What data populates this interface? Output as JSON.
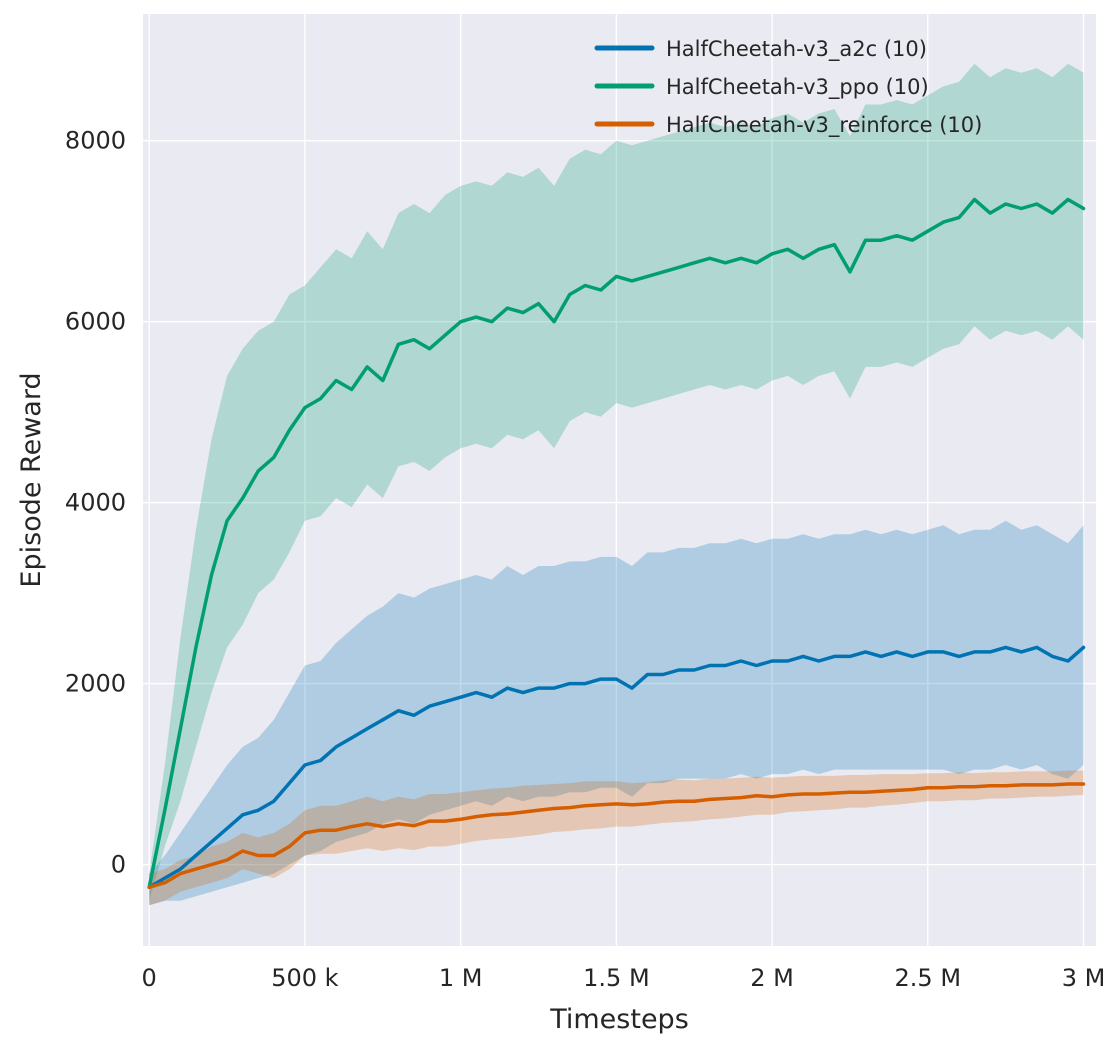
{
  "chart_data": {
    "type": "line",
    "title": "",
    "xlabel": "Timesteps",
    "ylabel": "Episode Reward",
    "xlim": [
      -20000,
      3040000
    ],
    "ylim": [
      -900,
      9400
    ],
    "grid": true,
    "legend_position": "upper center-right",
    "background": "#eaeaf2",
    "figure_background": "#ffffff",
    "grid_color": "#ffffff",
    "text_color": "#262626",
    "x_ticks": [
      {
        "value": 0,
        "label": "0"
      },
      {
        "value": 500000,
        "label": "500 k"
      },
      {
        "value": 1000000,
        "label": "1 M"
      },
      {
        "value": 1500000,
        "label": "1.5 M"
      },
      {
        "value": 2000000,
        "label": "2 M"
      },
      {
        "value": 2500000,
        "label": "2.5 M"
      },
      {
        "value": 3000000,
        "label": "3 M"
      }
    ],
    "y_ticks": [
      {
        "value": 0,
        "label": "0"
      },
      {
        "value": 2000,
        "label": "2000"
      },
      {
        "value": 4000,
        "label": "4000"
      },
      {
        "value": 6000,
        "label": "6000"
      },
      {
        "value": 8000,
        "label": "8000"
      }
    ],
    "x": [
      0,
      50000,
      100000,
      150000,
      200000,
      250000,
      300000,
      350000,
      400000,
      450000,
      500000,
      550000,
      600000,
      650000,
      700000,
      750000,
      800000,
      850000,
      900000,
      950000,
      1000000,
      1050000,
      1100000,
      1150000,
      1200000,
      1250000,
      1300000,
      1350000,
      1400000,
      1450000,
      1500000,
      1550000,
      1600000,
      1650000,
      1700000,
      1750000,
      1800000,
      1850000,
      1900000,
      1950000,
      2000000,
      2050000,
      2100000,
      2150000,
      2200000,
      2250000,
      2300000,
      2350000,
      2400000,
      2450000,
      2500000,
      2550000,
      2600000,
      2650000,
      2700000,
      2750000,
      2800000,
      2850000,
      2900000,
      2950000,
      3000000
    ],
    "series": [
      {
        "name": "HalfCheetah-v3_a2c (10)",
        "color": "#0173b2",
        "band_opacity": 0.25,
        "mean": [
          -250,
          -150,
          -50,
          100,
          250,
          400,
          550,
          600,
          700,
          900,
          1100,
          1150,
          1300,
          1400,
          1500,
          1600,
          1700,
          1650,
          1750,
          1800,
          1850,
          1900,
          1850,
          1950,
          1900,
          1950,
          1950,
          2000,
          2000,
          2050,
          2050,
          1950,
          2100,
          2100,
          2150,
          2150,
          2200,
          2200,
          2250,
          2200,
          2250,
          2250,
          2300,
          2250,
          2300,
          2300,
          2350,
          2300,
          2350,
          2300,
          2350,
          2350,
          2300,
          2350,
          2350,
          2400,
          2350,
          2400,
          2300,
          2250,
          2400
        ],
        "upper": [
          -100,
          100,
          350,
          600,
          850,
          1100,
          1300,
          1400,
          1600,
          1900,
          2200,
          2250,
          2450,
          2600,
          2750,
          2850,
          3000,
          2950,
          3050,
          3100,
          3150,
          3200,
          3150,
          3300,
          3200,
          3300,
          3300,
          3350,
          3350,
          3400,
          3400,
          3300,
          3450,
          3450,
          3500,
          3500,
          3550,
          3550,
          3600,
          3550,
          3600,
          3600,
          3650,
          3600,
          3650,
          3650,
          3700,
          3650,
          3700,
          3650,
          3700,
          3750,
          3650,
          3700,
          3700,
          3800,
          3700,
          3750,
          3650,
          3550,
          3750
        ],
        "lower": [
          -450,
          -400,
          -400,
          -350,
          -300,
          -250,
          -200,
          -150,
          -100,
          0,
          100,
          150,
          250,
          300,
          350,
          450,
          500,
          450,
          550,
          600,
          650,
          700,
          650,
          750,
          700,
          750,
          750,
          800,
          800,
          850,
          850,
          750,
          900,
          900,
          950,
          950,
          950,
          950,
          1000,
          950,
          1000,
          1000,
          1050,
          1000,
          1050,
          1050,
          1050,
          1050,
          1050,
          1050,
          1050,
          1050,
          1000,
          1050,
          1050,
          1100,
          1050,
          1100,
          1000,
          950,
          1100
        ]
      },
      {
        "name": "HalfCheetah-v3_ppo (10)",
        "color": "#029e73",
        "band_opacity": 0.25,
        "mean": [
          -250,
          600,
          1500,
          2400,
          3200,
          3800,
          4050,
          4350,
          4500,
          4800,
          5050,
          5150,
          5350,
          5250,
          5500,
          5350,
          5750,
          5800,
          5700,
          5850,
          6000,
          6050,
          6000,
          6150,
          6100,
          6200,
          6000,
          6300,
          6400,
          6350,
          6500,
          6450,
          6500,
          6550,
          6600,
          6650,
          6700,
          6650,
          6700,
          6650,
          6750,
          6800,
          6700,
          6800,
          6850,
          6550,
          6900,
          6900,
          6950,
          6900,
          7000,
          7100,
          7150,
          7350,
          7200,
          7300,
          7250,
          7300,
          7200,
          7350,
          7250
        ],
        "upper": [
          -100,
          1100,
          2500,
          3700,
          4700,
          5400,
          5700,
          5900,
          6000,
          6300,
          6400,
          6600,
          6800,
          6700,
          7000,
          6800,
          7200,
          7300,
          7200,
          7400,
          7500,
          7550,
          7500,
          7650,
          7600,
          7700,
          7500,
          7800,
          7900,
          7850,
          8000,
          7950,
          8000,
          8050,
          8100,
          8150,
          8200,
          8150,
          8200,
          8150,
          8250,
          8300,
          8200,
          8300,
          8350,
          8050,
          8400,
          8400,
          8450,
          8400,
          8500,
          8600,
          8650,
          8850,
          8700,
          8800,
          8750,
          8800,
          8700,
          8850,
          8750
        ],
        "lower": [
          -400,
          200,
          700,
          1300,
          1900,
          2400,
          2650,
          3000,
          3150,
          3450,
          3800,
          3850,
          4050,
          3950,
          4200,
          4050,
          4400,
          4450,
          4350,
          4500,
          4600,
          4650,
          4600,
          4750,
          4700,
          4800,
          4600,
          4900,
          5000,
          4950,
          5100,
          5050,
          5100,
          5150,
          5200,
          5250,
          5300,
          5250,
          5300,
          5250,
          5350,
          5400,
          5300,
          5400,
          5450,
          5150,
          5500,
          5500,
          5550,
          5500,
          5600,
          5700,
          5750,
          5950,
          5800,
          5900,
          5850,
          5900,
          5800,
          5950,
          5800
        ]
      },
      {
        "name": "HalfCheetah-v3_reinforce (10)",
        "color": "#d55e00",
        "band_opacity": 0.25,
        "mean": [
          -250,
          -200,
          -100,
          -50,
          0,
          50,
          150,
          100,
          100,
          200,
          350,
          380,
          380,
          420,
          450,
          420,
          450,
          430,
          480,
          480,
          500,
          530,
          550,
          560,
          580,
          600,
          620,
          630,
          650,
          660,
          670,
          660,
          670,
          690,
          700,
          700,
          720,
          730,
          740,
          760,
          750,
          770,
          780,
          780,
          790,
          800,
          800,
          810,
          820,
          830,
          850,
          850,
          860,
          860,
          870,
          870,
          880,
          880,
          880,
          890,
          890
        ],
        "upper": [
          -100,
          -50,
          50,
          100,
          200,
          250,
          350,
          300,
          350,
          450,
          600,
          650,
          650,
          700,
          750,
          700,
          750,
          720,
          780,
          780,
          800,
          820,
          840,
          850,
          870,
          880,
          890,
          900,
          920,
          920,
          920,
          900,
          910,
          930,
          940,
          930,
          950,
          950,
          960,
          970,
          960,
          970,
          980,
          980,
          980,
          990,
          990,
          1000,
          1000,
          1000,
          1010,
          1010,
          1020,
          1010,
          1020,
          1020,
          1030,
          1030,
          1030,
          1040,
          1040
        ],
        "lower": [
          -450,
          -400,
          -300,
          -250,
          -200,
          -150,
          -50,
          -100,
          -150,
          -50,
          100,
          120,
          120,
          150,
          180,
          150,
          180,
          160,
          200,
          200,
          230,
          260,
          280,
          290,
          310,
          330,
          360,
          370,
          390,
          400,
          420,
          420,
          440,
          460,
          470,
          480,
          500,
          510,
          530,
          550,
          550,
          580,
          590,
          600,
          610,
          630,
          630,
          650,
          660,
          680,
          700,
          700,
          710,
          710,
          730,
          730,
          740,
          750,
          750,
          760,
          770
        ]
      }
    ]
  }
}
